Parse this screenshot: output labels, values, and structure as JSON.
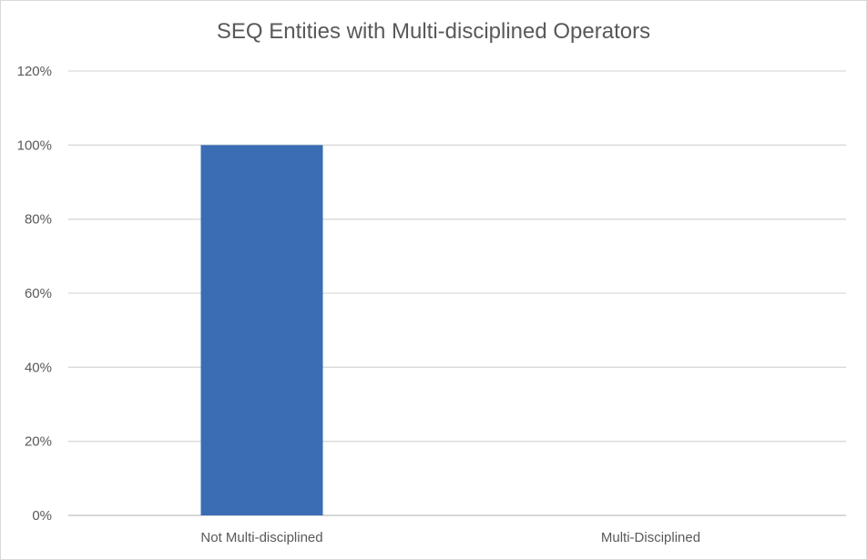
{
  "chart_data": {
    "type": "bar",
    "title": "SEQ Entities with Multi-disciplined Operators",
    "xlabel": "",
    "ylabel": "",
    "categories": [
      "Not Multi-disciplined",
      "Multi-Disciplined"
    ],
    "values": [
      1.0,
      0.0
    ],
    "value_format": "percent",
    "ylim": [
      0,
      1.2
    ],
    "yticks": [
      0,
      0.2,
      0.4,
      0.6,
      0.8,
      1.0,
      1.2
    ],
    "ytick_labels": [
      "0%",
      "20%",
      "40%",
      "60%",
      "80%",
      "100%",
      "120%"
    ],
    "grid": true,
    "legend": "none",
    "colors": {
      "bar": "#3a6db4",
      "grid": "#d9d9d9",
      "text": "#595959"
    }
  }
}
